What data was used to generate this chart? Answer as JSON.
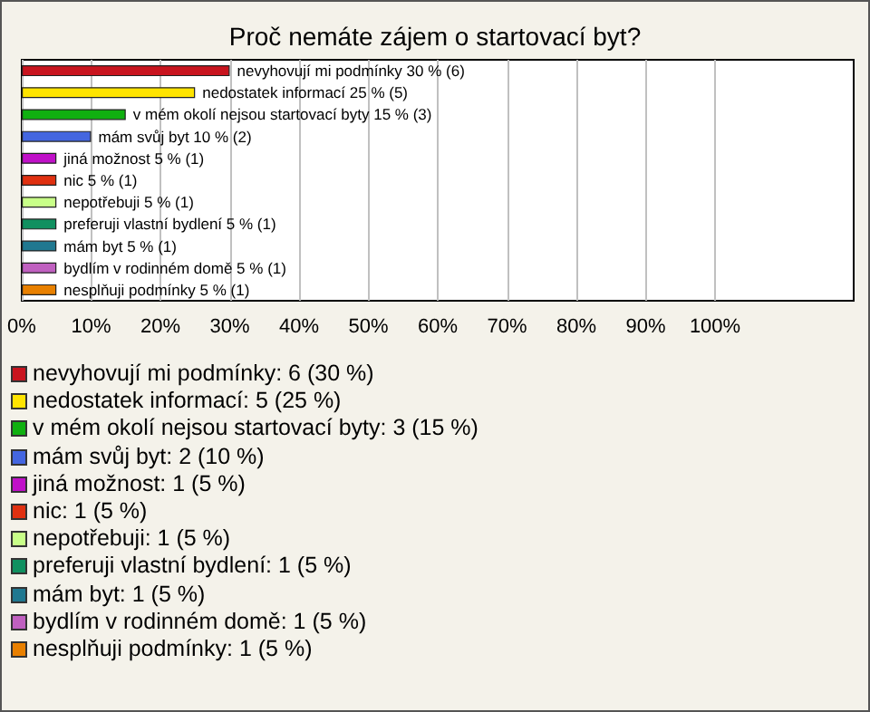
{
  "chart_data": {
    "type": "bar",
    "orientation": "horizontal",
    "title": "Proč nemáte zájem o startovací byt?",
    "categories": [
      null,
      null,
      null,
      null,
      null,
      null,
      null,
      null,
      null,
      null,
      null
    ],
    "values": [
      30,
      25,
      15,
      10,
      5,
      5,
      5,
      5,
      5,
      5,
      5
    ],
    "colors": [
      "#c8141e",
      "#ffe400",
      "#10b010",
      "#4466e0",
      "#c010c8",
      "#e03010",
      "#c8ff88",
      "#109060",
      "#207890",
      "#c060c0",
      "#e88000"
    ],
    "value_labels": [
      "nevyhovují mi podmínky 30 % (6)",
      "nedostatek informací 25 % (5)",
      "v mém okolí nejsou startovací byty 15 % (3)",
      "mám svůj byt 10 % (2)",
      "jiná možnost 5 % (1)",
      "nic 5 % (1)",
      "nepotřebuji 5 % (1)",
      "preferuji vlastní bydlení 5 % (1)",
      "mám byt 5 % (1)",
      "bydlím v rodinném domě 5 % (1)",
      "nesplňuji podmínky 5 % (1)"
    ],
    "xlim": [
      0,
      120
    ],
    "xticks": [
      {
        "value": 0,
        "label": "0%"
      },
      {
        "value": 10,
        "label": "10%"
      },
      {
        "value": 20,
        "label": "20%"
      },
      {
        "value": 30,
        "label": "30%"
      },
      {
        "value": 40,
        "label": "40%"
      },
      {
        "value": 50,
        "label": "50%"
      },
      {
        "value": 60,
        "label": "60%"
      },
      {
        "value": 70,
        "label": "70%"
      },
      {
        "value": 80,
        "label": "80%"
      },
      {
        "value": 90,
        "label": "90%"
      },
      {
        "value": 100,
        "label": "100%"
      }
    ],
    "grid": "x",
    "tick_labels": "x",
    "annotations": [
      "nevyhovují mi podmínky: 6 (30 %)",
      "nedostatek informací: 5 (25 %)",
      "v mém okolí nejsou startovací byty: 3 (15 %)",
      "mám svůj byt: 2 (10 %)",
      "jiná možnost: 1 (5 %)",
      "nic: 1 (5 %)",
      "nepotřebuji: 1 (5 %)",
      "preferuji vlastní bydlení: 1 (5 %)",
      "mám byt: 1 (5 %)",
      "bydlím v rodinném domě: 1 (5 %)",
      "nesplňuji podmínky: 1 (5 %)"
    ]
  }
}
